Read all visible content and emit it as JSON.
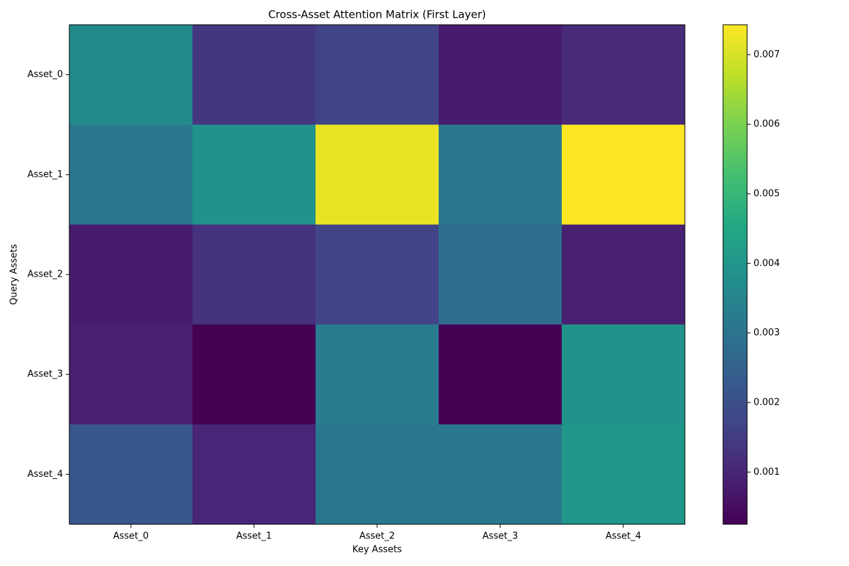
{
  "chart_data": {
    "type": "heatmap",
    "title": "Cross-Asset Attention Matrix (First Layer)",
    "x_label": "Key Assets",
    "y_label": "Query Assets",
    "categories": [
      "Asset_0",
      "Asset_1",
      "Asset_2",
      "Asset_3",
      "Asset_4"
    ],
    "y_categories": [
      "Asset_0",
      "Asset_1",
      "Asset_2",
      "Asset_3",
      "Asset_4"
    ],
    "values": [
      [
        0.0036,
        0.0014,
        0.0017,
        0.0008,
        0.0011
      ],
      [
        0.0031,
        0.0039,
        0.0072,
        0.0031,
        0.00743
      ],
      [
        0.0008,
        0.0013,
        0.0017,
        0.0028,
        0.0009
      ],
      [
        0.0009,
        0.00025,
        0.0032,
        0.00025,
        0.0039
      ],
      [
        0.0022,
        0.001,
        0.0031,
        0.0031,
        0.004
      ]
    ],
    "colormap": "viridis",
    "clim": [
      0.00025,
      0.00743
    ],
    "cticks": [
      0.001,
      0.002,
      0.003,
      0.004,
      0.005,
      0.006,
      0.007
    ]
  }
}
